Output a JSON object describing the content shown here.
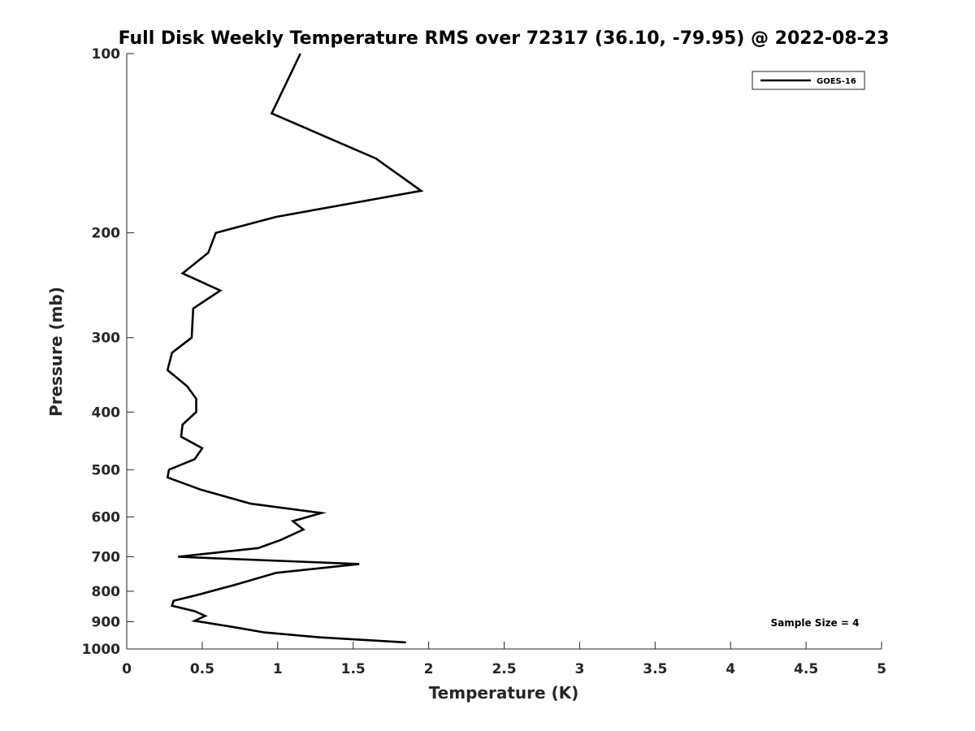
{
  "chart_data": {
    "type": "line",
    "title": "Full Disk Weekly Temperature RMS over 72317 (36.10, -79.95) @ 2022-08-23",
    "xlabel": "Temperature (K)",
    "ylabel": "Pressure (mb)",
    "xlim": [
      0,
      5
    ],
    "ylim": [
      100,
      1000
    ],
    "y_scale": "log",
    "y_reversed": true,
    "x_ticks": [
      "0",
      "0.5",
      "1",
      "1.5",
      "2",
      "2.5",
      "3",
      "3.5",
      "4",
      "4.5",
      "5"
    ],
    "y_ticks": [
      "100",
      "200",
      "300",
      "400",
      "500",
      "600",
      "700",
      "800",
      "900",
      "1000"
    ],
    "grid": false,
    "legend_position": "top-right",
    "annotation": "Sample Size = 4",
    "series": [
      {
        "name": "GOES-16",
        "color": "#000000",
        "points": [
          [
            1.15,
            100
          ],
          [
            0.96,
            126
          ],
          [
            1.65,
            150
          ],
          [
            1.95,
            170
          ],
          [
            0.99,
            188
          ],
          [
            0.59,
            200
          ],
          [
            0.54,
            216
          ],
          [
            0.37,
            234
          ],
          [
            0.62,
            250
          ],
          [
            0.44,
            268
          ],
          [
            0.43,
            300
          ],
          [
            0.3,
            318
          ],
          [
            0.27,
            340
          ],
          [
            0.4,
            362
          ],
          [
            0.46,
            380
          ],
          [
            0.46,
            400
          ],
          [
            0.37,
            420
          ],
          [
            0.36,
            440
          ],
          [
            0.5,
            460
          ],
          [
            0.45,
            480
          ],
          [
            0.28,
            500
          ],
          [
            0.27,
            515
          ],
          [
            0.49,
            540
          ],
          [
            0.82,
            570
          ],
          [
            1.29,
            591
          ],
          [
            1.1,
            610
          ],
          [
            1.17,
            630
          ],
          [
            1.02,
            656
          ],
          [
            0.87,
            677
          ],
          [
            0.34,
            700
          ],
          [
            1.54,
            720
          ],
          [
            0.99,
            745
          ],
          [
            0.72,
            780
          ],
          [
            0.48,
            810
          ],
          [
            0.31,
            830
          ],
          [
            0.3,
            846
          ],
          [
            0.45,
            864
          ],
          [
            0.52,
            880
          ],
          [
            0.45,
            897
          ],
          [
            0.7,
            918
          ],
          [
            0.91,
            938
          ],
          [
            1.28,
            956
          ],
          [
            1.85,
            975
          ]
        ]
      }
    ]
  }
}
